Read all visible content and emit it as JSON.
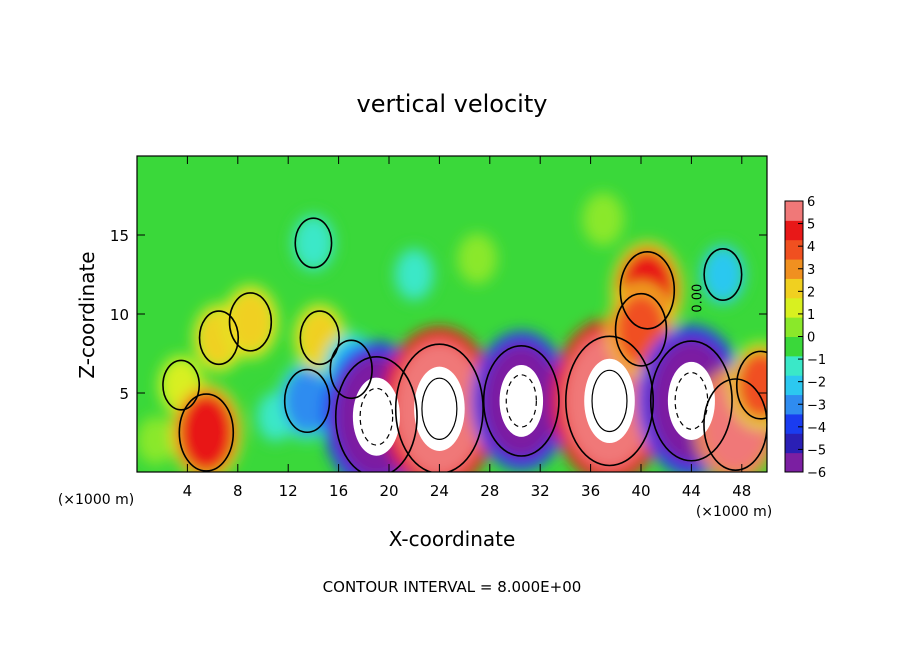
{
  "chart_data": {
    "type": "heatmap",
    "title": "vertical velocity",
    "xlabel": "X-coordinate",
    "ylabel": "Z-coordinate",
    "x_unit_note": "(×1000 m)",
    "y_unit_note": "(×1000 m)",
    "xlim": [
      0,
      50
    ],
    "ylim": [
      0,
      20
    ],
    "x_ticks": [
      4,
      8,
      12,
      16,
      20,
      24,
      28,
      32,
      36,
      40,
      44,
      48
    ],
    "y_ticks": [
      5,
      10,
      15
    ],
    "colorbar": {
      "min": -6,
      "max": 6,
      "ticks": [
        6,
        5,
        4,
        3,
        2,
        1,
        0,
        -1,
        -2,
        -3,
        -4,
        -5,
        -6
      ],
      "colors": [
        "#7b1fa2",
        "#2a1fb5",
        "#1a3cf0",
        "#2f8cf0",
        "#2cc8f0",
        "#3ae8c8",
        "#3ad83a",
        "#8ae82a",
        "#d8f020",
        "#f0d020",
        "#f09020",
        "#f05020",
        "#e81818",
        "#f07878"
      ]
    },
    "cells": [
      {
        "x": 1.5,
        "z": 2.0,
        "w": 0.4
      },
      {
        "x": 3.5,
        "z": 5.5,
        "w": 1.6
      },
      {
        "x": 5.5,
        "z": 2.5,
        "w": 4.5
      },
      {
        "x": 6.5,
        "z": 8.5,
        "w": 2.0
      },
      {
        "x": 9.0,
        "z": 9.5,
        "w": 2.5
      },
      {
        "x": 11.0,
        "z": 3.5,
        "w": -1.0
      },
      {
        "x": 13.5,
        "z": 4.5,
        "w": -3.0
      },
      {
        "x": 14.5,
        "z": 8.5,
        "w": 2.0
      },
      {
        "x": 17.0,
        "z": 6.5,
        "w": -2.5
      },
      {
        "x": 19.0,
        "z": 3.5,
        "w": -9.0
      },
      {
        "x": 24.0,
        "z": 4.0,
        "w": 10.0
      },
      {
        "x": 30.5,
        "z": 4.5,
        "w": -8.0
      },
      {
        "x": 37.5,
        "z": 4.5,
        "w": 10.0
      },
      {
        "x": 40.5,
        "z": 11.5,
        "w": 4.5
      },
      {
        "x": 40.0,
        "z": 9.0,
        "w": 4.0
      },
      {
        "x": 44.0,
        "z": 4.5,
        "w": -9.0
      },
      {
        "x": 47.5,
        "z": 3.0,
        "w": 6.0
      },
      {
        "x": 14.0,
        "z": 14.5,
        "w": -1.6
      },
      {
        "x": 22.0,
        "z": 12.5,
        "w": -1.2
      },
      {
        "x": 27.0,
        "z": 13.5,
        "w": 0.6
      },
      {
        "x": 37.0,
        "z": 16.0,
        "w": 0.8
      },
      {
        "x": 46.5,
        "z": 12.5,
        "w": -1.8
      },
      {
        "x": 49.5,
        "z": 5.5,
        "w": 3.5
      }
    ],
    "contour_label": "0.00"
  },
  "footer": "CONTOUR INTERVAL = 8.000E+00"
}
